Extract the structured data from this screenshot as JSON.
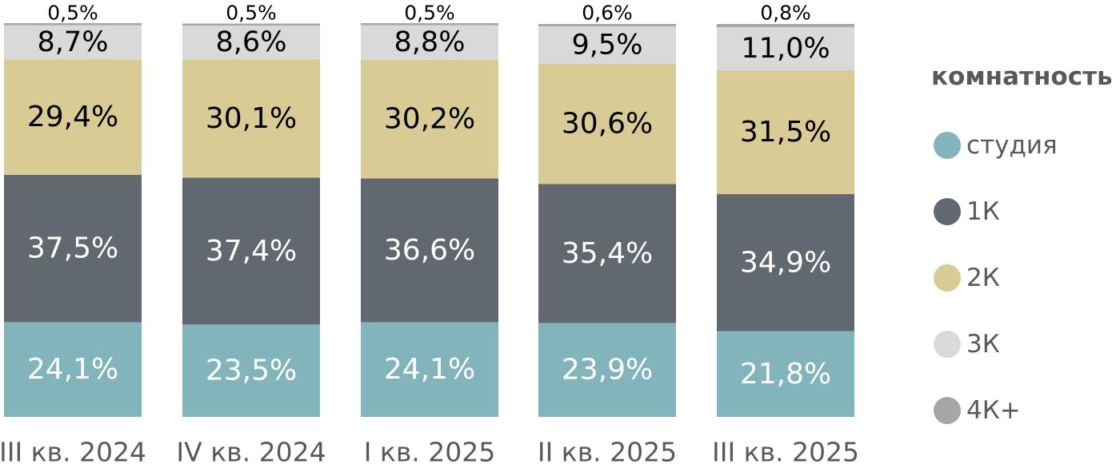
{
  "chart_data": {
    "type": "bar",
    "stacked": true,
    "categories": [
      "III кв. 2024",
      "IV кв. 2024",
      "I кв. 2025",
      "II кв. 2025",
      "III кв. 2025"
    ],
    "series": [
      {
        "name": "студия",
        "color": "#82b5bb",
        "values": [
          24.1,
          23.5,
          24.1,
          23.9,
          21.8
        ],
        "labels": [
          "24,1%",
          "23,5%",
          "24,1%",
          "23,9%",
          "21,8%"
        ]
      },
      {
        "name": "1К",
        "color": "#616870",
        "values": [
          37.5,
          37.4,
          36.6,
          35.4,
          34.9
        ],
        "labels": [
          "37,5%",
          "37,4%",
          "36,6%",
          "35,4%",
          "34,9%"
        ]
      },
      {
        "name": "2К",
        "color": "#d8cc94",
        "values": [
          29.4,
          30.1,
          30.2,
          30.6,
          31.5
        ],
        "labels": [
          "29,4%",
          "30,1%",
          "30,2%",
          "30,6%",
          "31,5%"
        ]
      },
      {
        "name": "3К",
        "color": "#d9d9d9",
        "values": [
          8.7,
          8.6,
          8.8,
          9.5,
          11.0
        ],
        "labels": [
          "8,7%",
          "8,6%",
          "8,8%",
          "9,5%",
          "11,0%"
        ]
      },
      {
        "name": "4К+",
        "color": "#a6a6a6",
        "values": [
          0.5,
          0.5,
          0.5,
          0.6,
          0.8
        ],
        "labels": [
          "0,5%",
          "0,5%",
          "0,5%",
          "0,6%",
          "0,8%"
        ]
      }
    ],
    "ylim": [
      0,
      100
    ],
    "grid": false,
    "legend": {
      "title": "комнатность",
      "placement": "right"
    }
  }
}
